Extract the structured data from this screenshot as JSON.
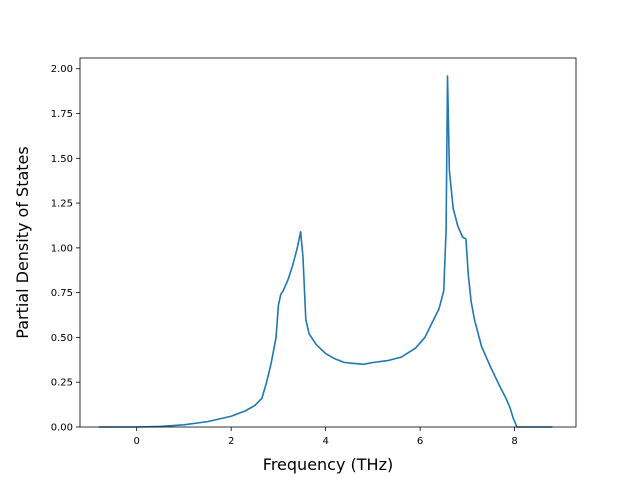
{
  "chart_data": {
    "type": "line",
    "title": "",
    "xlabel": "Frequency (THz)",
    "ylabel": "Partial Density of States",
    "xlim": [
      -1.2,
      9.3
    ],
    "ylim": [
      0,
      2.06
    ],
    "xticks": [
      0,
      2,
      4,
      6,
      8
    ],
    "xtick_labels": [
      "0",
      "2",
      "4",
      "6",
      "8"
    ],
    "yticks": [
      0,
      0.25,
      0.5,
      0.75,
      1.0,
      1.25,
      1.5,
      1.75,
      2.0
    ],
    "ytick_labels": [
      "0.00",
      "0.25",
      "0.50",
      "0.75",
      "1.00",
      "1.25",
      "1.50",
      "1.75",
      "2.00"
    ],
    "grid": false,
    "line_color": "#1f77b4",
    "series": [
      {
        "x": [
          -0.8,
          0.0,
          0.5,
          1.0,
          1.5,
          2.0,
          2.3,
          2.5,
          2.65,
          2.75,
          2.85,
          2.95,
          3.0,
          3.05,
          3.1,
          3.2,
          3.3,
          3.4,
          3.47,
          3.52,
          3.58,
          3.65,
          3.8,
          4.0,
          4.2,
          4.4,
          4.6,
          4.8,
          5.0,
          5.3,
          5.6,
          5.9,
          6.1,
          6.25,
          6.4,
          6.5,
          6.55,
          6.58,
          6.62,
          6.7,
          6.8,
          6.9,
          6.97,
          7.02,
          7.08,
          7.15,
          7.3,
          7.5,
          7.7,
          7.8,
          7.9,
          7.97,
          8.05,
          8.8
        ],
        "y": [
          0.0,
          0.0,
          0.003,
          0.012,
          0.03,
          0.06,
          0.09,
          0.12,
          0.16,
          0.25,
          0.36,
          0.5,
          0.68,
          0.74,
          0.76,
          0.82,
          0.9,
          1.0,
          1.09,
          0.95,
          0.6,
          0.52,
          0.46,
          0.41,
          0.38,
          0.36,
          0.355,
          0.35,
          0.36,
          0.37,
          0.39,
          0.44,
          0.5,
          0.58,
          0.66,
          0.76,
          1.1,
          1.96,
          1.43,
          1.22,
          1.12,
          1.06,
          1.05,
          0.85,
          0.7,
          0.6,
          0.45,
          0.33,
          0.22,
          0.17,
          0.11,
          0.05,
          0.0,
          0.0
        ]
      }
    ]
  }
}
